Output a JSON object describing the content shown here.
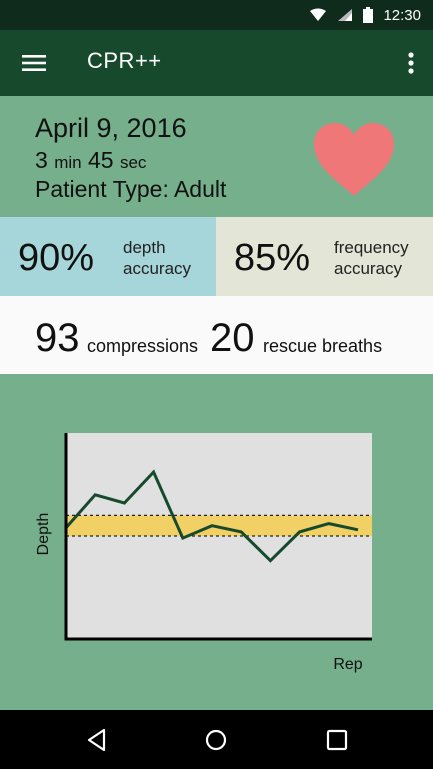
{
  "status_bar": {
    "time": "12:30"
  },
  "app_bar": {
    "title": "CPR++"
  },
  "session": {
    "date": "April 9, 2016",
    "minutes": "3",
    "minutes_unit": "min",
    "seconds": "45",
    "seconds_unit": "sec",
    "patient_type": "Patient Type: Adult"
  },
  "accuracy": {
    "depth": {
      "value": "90%",
      "label_line1": "depth",
      "label_line2": "accuracy"
    },
    "frequency": {
      "value": "85%",
      "label_line1": "frequency",
      "label_line2": "accuracy"
    }
  },
  "counts": {
    "compressions": {
      "value": "93",
      "label": "compressions"
    },
    "rescue_breaths": {
      "value": "20",
      "label": "rescue breaths"
    }
  },
  "colors": {
    "heart": "#ef7777",
    "target_band": "#f1d166",
    "line": "#174a2d",
    "plot_bg": "#e0e0e0"
  },
  "chart_data": {
    "type": "line",
    "xlabel": "Rep",
    "ylabel": "Depth",
    "ylim": [
      0,
      10
    ],
    "target_range": [
      5.0,
      6.0
    ],
    "grid": false,
    "series": [
      {
        "values": [
          5.4,
          7.0,
          6.6,
          8.1,
          4.9,
          5.5,
          5.2,
          3.8,
          5.2,
          5.6,
          5.3
        ]
      }
    ]
  }
}
